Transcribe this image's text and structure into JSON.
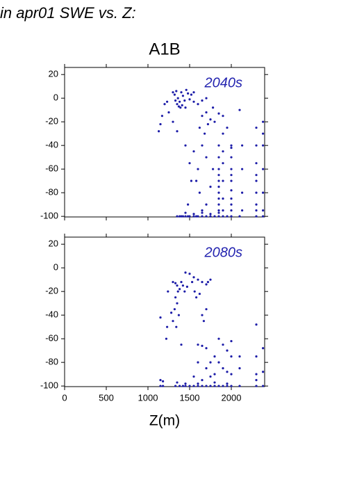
{
  "page_title": "in apr01 SWE vs. Z:",
  "group_title": "A1B",
  "chart_data": [
    {
      "type": "scatter",
      "annotation": "2040s",
      "color": "#1c1ca8",
      "x": [
        1300,
        1320,
        1340,
        1360,
        1380,
        1350,
        1400,
        1420,
        1440,
        1460,
        1480,
        1500,
        1520,
        1390,
        1330,
        1370,
        1410,
        1550,
        1600,
        1650,
        1700,
        1550,
        1450,
        1200,
        1170,
        1150,
        1130,
        1250,
        1300,
        1350,
        1230,
        1650,
        1700,
        1750,
        1800,
        1850,
        1900,
        1950,
        1620,
        1680,
        1720,
        2100,
        1780,
        1850,
        1850,
        1850,
        1850,
        1850,
        1850,
        1850,
        1850,
        1850,
        1850,
        1900,
        1900,
        1900,
        1900,
        1900,
        1900,
        2000,
        2000,
        2000,
        2000,
        2000,
        2000,
        2000,
        2000,
        2000,
        2000,
        2300,
        2300,
        2300,
        2300,
        2300,
        2300,
        2300,
        2300,
        2380,
        2380,
        2380,
        2380,
        2380,
        2380,
        2130,
        2130,
        2130,
        2130,
        1450,
        1500,
        1550,
        1600,
        1650,
        1700,
        1750,
        1620,
        1580,
        1700,
        1650,
        1780,
        1520,
        1480,
        1350,
        1380,
        1400,
        1420,
        1450,
        1480,
        1500,
        1550,
        1580,
        1600,
        1650,
        1700,
        1750,
        1800,
        1850,
        1900,
        1950,
        2000,
        2100,
        2300,
        2380,
        1450,
        1550,
        1650,
        1750,
        1850
      ],
      "values": [
        5,
        3,
        6,
        0,
        -3,
        -5,
        5,
        2,
        -2,
        7,
        4,
        -1,
        3,
        -8,
        -2,
        -7,
        -6,
        -3,
        -5,
        -2,
        0,
        5,
        -8,
        -5,
        -15,
        -22,
        -28,
        -12,
        -20,
        -28,
        -3,
        -15,
        -12,
        -18,
        -20,
        -13,
        -15,
        -25,
        -25,
        -30,
        -22,
        -10,
        -8,
        -40,
        -50,
        -60,
        -65,
        -70,
        -75,
        -80,
        -85,
        -90,
        -95,
        -30,
        -45,
        -55,
        -70,
        -85,
        -95,
        -40,
        -42,
        -50,
        -60,
        -65,
        -70,
        -78,
        -85,
        -90,
        -95,
        -25,
        -40,
        -55,
        -65,
        -70,
        -80,
        -90,
        -95,
        -20,
        -30,
        -40,
        -60,
        -80,
        -95,
        -40,
        -60,
        -80,
        -95,
        -40,
        -55,
        -45,
        -60,
        -40,
        -50,
        -75,
        -80,
        -70,
        -90,
        -95,
        -60,
        -70,
        -90,
        -100,
        -100,
        -100,
        -100,
        -100,
        -100,
        -100,
        -100,
        -100,
        -100,
        -100,
        -100,
        -100,
        -100,
        -100,
        -100,
        -100,
        -100,
        -100,
        -100,
        -100,
        -97,
        -98,
        -97,
        -98,
        -97
      ],
      "xlim": [
        0,
        2400
      ],
      "ylim": [
        -100.5,
        26
      ],
      "xticks": [
        0,
        500,
        1000,
        1500,
        2000
      ],
      "yticks": [
        20,
        0,
        -20,
        -40,
        -60,
        -80,
        -100
      ]
    },
    {
      "type": "scatter",
      "annotation": "2080s",
      "color": "#1c1ca8",
      "x_label": "Z(m)",
      "x": [
        1450,
        1500,
        1550,
        1600,
        1650,
        1700,
        1750,
        1720,
        1530,
        1400,
        1350,
        1380,
        1420,
        1360,
        1300,
        1330,
        1440,
        1560,
        1580,
        1620,
        1470,
        1240,
        1350,
        1320,
        1370,
        1300,
        1280,
        1340,
        1230,
        1150,
        1220,
        1330,
        1400,
        1650,
        1670,
        1700,
        1600,
        1650,
        1700,
        1750,
        1800,
        1850,
        1900,
        1950,
        2000,
        2000,
        1850,
        1900,
        1950,
        2000,
        2300,
        2300,
        2380,
        2100,
        2100,
        1800,
        1700,
        1600,
        1750,
        1650,
        1550,
        2300,
        2380,
        2300,
        1150,
        1180,
        1330,
        1380,
        1420,
        1450,
        1500,
        1550,
        1600,
        1650,
        1700,
        1750,
        1800,
        1850,
        1900,
        1950,
        2000,
        2100,
        2300,
        2380,
        1150,
        1180,
        1350,
        1450,
        1600,
        1800,
        1950
      ],
      "values": [
        -4,
        -5,
        -8,
        -10,
        -12,
        -14,
        -10,
        -12,
        -12,
        -12,
        -15,
        -18,
        -15,
        -20,
        -12,
        -13,
        -20,
        -20,
        -25,
        -22,
        -16,
        -20,
        -30,
        -35,
        -40,
        -45,
        -38,
        -50,
        -50,
        -42,
        -60,
        -25,
        -65,
        -40,
        -45,
        -35,
        -65,
        -66,
        -68,
        -80,
        -75,
        -60,
        -65,
        -70,
        -62,
        -75,
        -80,
        -85,
        -88,
        -90,
        -48,
        -75,
        -68,
        -75,
        -85,
        -90,
        -85,
        -80,
        -92,
        -95,
        -92,
        -90,
        -88,
        -95,
        -100,
        -100,
        -100,
        -100,
        -100,
        -100,
        -100,
        -100,
        -100,
        -100,
        -100,
        -100,
        -100,
        -100,
        -100,
        -100,
        -100,
        -100,
        -100,
        -100,
        -95,
        -96,
        -97,
        -98,
        -98,
        -97,
        -98
      ],
      "xlim": [
        0,
        2400
      ],
      "ylim": [
        -100.5,
        26
      ],
      "xticks": [
        0,
        500,
        1000,
        1500,
        2000
      ],
      "yticks": [
        20,
        0,
        -20,
        -40,
        -60,
        -80,
        -100
      ]
    }
  ]
}
